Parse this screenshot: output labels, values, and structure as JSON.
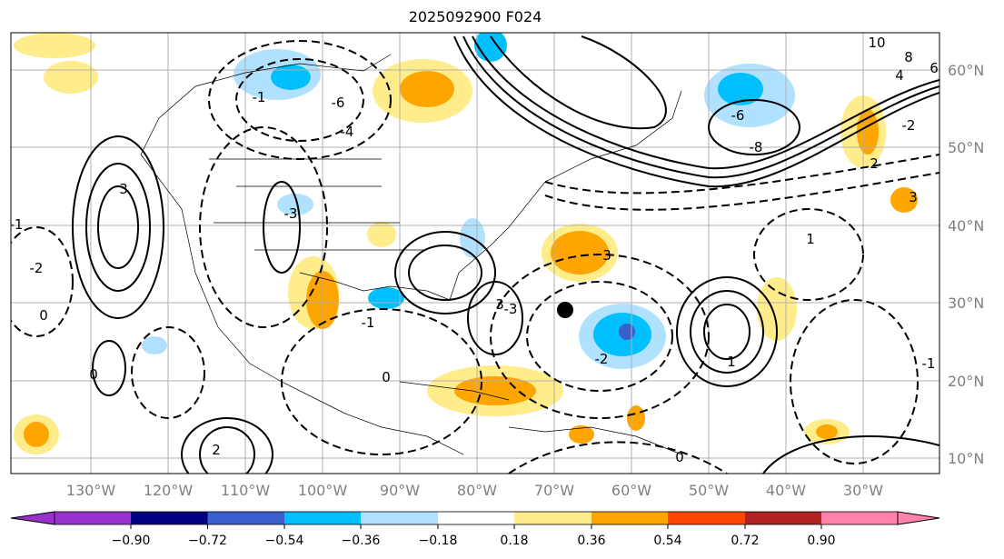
{
  "title": "2025092900 F024",
  "lat_labels": [
    "60°N",
    "50°N",
    "40°N",
    "30°N",
    "20°N",
    "10°N"
  ],
  "lon_labels": [
    "130°W",
    "120°W",
    "110°W",
    "100°W",
    "90°W",
    "80°W",
    "70°W",
    "60°W",
    "50°W",
    "40°W",
    "30°W"
  ],
  "colorbar": {
    "ticks": [
      "−0.90",
      "−0.72",
      "−0.54",
      "−0.36",
      "−0.18",
      "0.18",
      "0.36",
      "0.54",
      "0.72",
      "0.90"
    ],
    "colors": [
      "#9932CC",
      "#000080",
      "#3A5FCD",
      "#00BFFF",
      "#B0E2FF",
      "#FFFFFF",
      "#FFEC8B",
      "#FFA500",
      "#FF4500",
      "#B22222",
      "#FF82AB"
    ]
  },
  "contour_labels": [
    "10",
    "8",
    "6",
    "4",
    "-2",
    "-6",
    "-8",
    "-6",
    "-4",
    "3",
    "-3",
    "3",
    "2",
    "-1",
    "1",
    "0",
    "-1",
    "-2",
    "3",
    "-3",
    "-2",
    "0",
    "3",
    "-1",
    "2",
    "0",
    "1",
    "-1",
    "0"
  ]
}
